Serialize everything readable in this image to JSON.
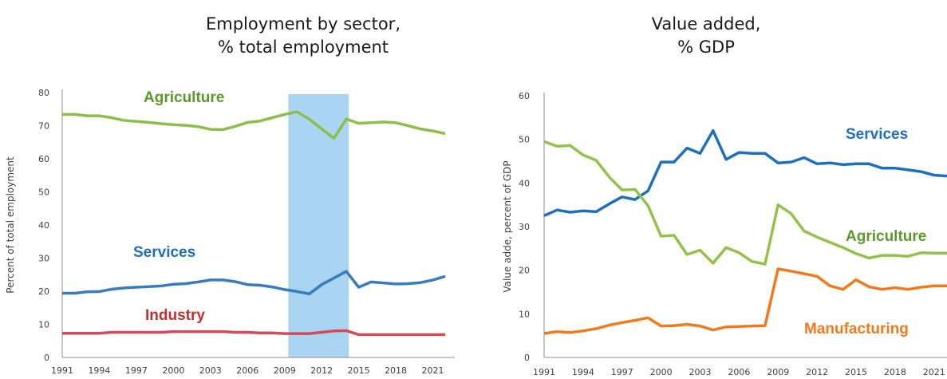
{
  "chart_data": [
    {
      "type": "line",
      "title_line1": "Employment by sector,",
      "title_line2": "% total employment",
      "xlabel": "",
      "ylabel": "Percent of total employment",
      "ylim": [
        0,
        80
      ],
      "yticks": [
        0,
        10,
        20,
        30,
        40,
        50,
        60,
        70,
        80
      ],
      "xlim": [
        1991,
        2022
      ],
      "xticks": [
        1991,
        1994,
        1997,
        2000,
        2003,
        2006,
        2009,
        2012,
        2015,
        2018,
        2021
      ],
      "x": [
        1991,
        1992,
        1993,
        1994,
        1995,
        1996,
        1997,
        1998,
        1999,
        2000,
        2001,
        2002,
        2003,
        2004,
        2005,
        2006,
        2007,
        2008,
        2009,
        2010,
        2011,
        2012,
        2013,
        2014,
        2015,
        2016,
        2017,
        2018,
        2019,
        2020,
        2021,
        2022
      ],
      "highlight": {
        "x_from": 2009.3,
        "x_to": 2014.2,
        "color": "#a9d4f2"
      },
      "grid": false,
      "series": [
        {
          "name": "Agriculture",
          "color": "#8bbf4a",
          "label_color": "#5a9a2a",
          "values": [
            73.4,
            73.4,
            73.0,
            73.0,
            72.4,
            71.6,
            71.3,
            71.0,
            70.6,
            70.3,
            70.1,
            69.7,
            68.9,
            68.8,
            69.8,
            71.0,
            71.4,
            72.4,
            73.4,
            74.2,
            72.0,
            69.0,
            66.2,
            72.0,
            70.7,
            70.9,
            71.1,
            70.9,
            70.0,
            69.0,
            68.4,
            67.6
          ]
        },
        {
          "name": "Services",
          "color": "#3a7bbf",
          "label_color": "#1f6fb8",
          "values": [
            19.4,
            19.4,
            19.8,
            19.9,
            20.6,
            21.0,
            21.2,
            21.4,
            21.6,
            22.1,
            22.3,
            22.8,
            23.4,
            23.4,
            22.9,
            22.0,
            21.8,
            21.3,
            20.5,
            19.9,
            19.2,
            22.0,
            24.0,
            26.0,
            21.2,
            22.8,
            22.5,
            22.2,
            22.3,
            22.6,
            23.4,
            24.5
          ]
        },
        {
          "name": "Industry",
          "color": "#d24b5a",
          "label_color": "#c0302e",
          "values": [
            7.3,
            7.3,
            7.3,
            7.3,
            7.6,
            7.6,
            7.6,
            7.6,
            7.6,
            7.8,
            7.8,
            7.8,
            7.8,
            7.8,
            7.6,
            7.6,
            7.4,
            7.4,
            7.2,
            7.2,
            7.2,
            7.6,
            8.0,
            8.1,
            6.9,
            6.9,
            6.9,
            6.9,
            6.9,
            6.9,
            6.9,
            6.9
          ]
        }
      ]
    },
    {
      "type": "line",
      "title_line1": "Value added,",
      "title_line2": "% GDP",
      "xlabel": "",
      "ylabel": "Value adde, percent of GDP",
      "ylim": [
        0,
        60
      ],
      "yticks": [
        0,
        10,
        20,
        30,
        40,
        50,
        60
      ],
      "xlim": [
        1991,
        2022
      ],
      "xticks": [
        1991,
        1994,
        1997,
        2000,
        2003,
        2006,
        2009,
        2012,
        2015,
        2018,
        2021
      ],
      "x": [
        1991,
        1992,
        1993,
        1994,
        1995,
        1996,
        1997,
        1998,
        1999,
        2000,
        2001,
        2002,
        2003,
        2004,
        2005,
        2006,
        2007,
        2008,
        2009,
        2010,
        2011,
        2012,
        2013,
        2014,
        2015,
        2016,
        2017,
        2018,
        2019,
        2020,
        2021,
        2022
      ],
      "grid": false,
      "series": [
        {
          "name": "Services",
          "color": "#1f6fbf",
          "label_color": "#1f6fbf",
          "values": [
            32.5,
            33.8,
            33.3,
            33.6,
            33.4,
            35.2,
            36.8,
            36.2,
            38.2,
            44.8,
            44.8,
            48.0,
            46.8,
            52.0,
            45.4,
            47.0,
            46.8,
            46.8,
            44.6,
            44.8,
            45.8,
            44.4,
            44.6,
            44.2,
            44.4,
            44.4,
            43.4,
            43.4,
            43.0,
            42.6,
            41.8,
            41.6
          ]
        },
        {
          "name": "Agriculture",
          "color": "#93c24a",
          "label_color": "#5a9a2a",
          "values": [
            49.5,
            48.4,
            48.6,
            46.4,
            45.2,
            41.4,
            38.4,
            38.5,
            34.8,
            27.8,
            28.0,
            23.6,
            24.6,
            21.6,
            25.2,
            24.0,
            22.0,
            21.4,
            35.0,
            33.0,
            29.0,
            27.6,
            26.4,
            25.2,
            23.8,
            22.8,
            23.4,
            23.4,
            23.2,
            24.0,
            23.9,
            23.9
          ]
        },
        {
          "name": "Manufacturing",
          "color": "#f07a1c",
          "label_color": "#f07a1c",
          "values": [
            5.5,
            5.9,
            5.7,
            6.1,
            6.6,
            7.4,
            8.0,
            8.5,
            9.1,
            7.2,
            7.3,
            7.6,
            7.2,
            6.3,
            7.0,
            7.1,
            7.2,
            7.3,
            20.3,
            19.8,
            19.2,
            18.6,
            16.4,
            15.6,
            17.8,
            16.2,
            15.6,
            16.0,
            15.6,
            16.1,
            16.4,
            16.4
          ]
        }
      ]
    }
  ]
}
